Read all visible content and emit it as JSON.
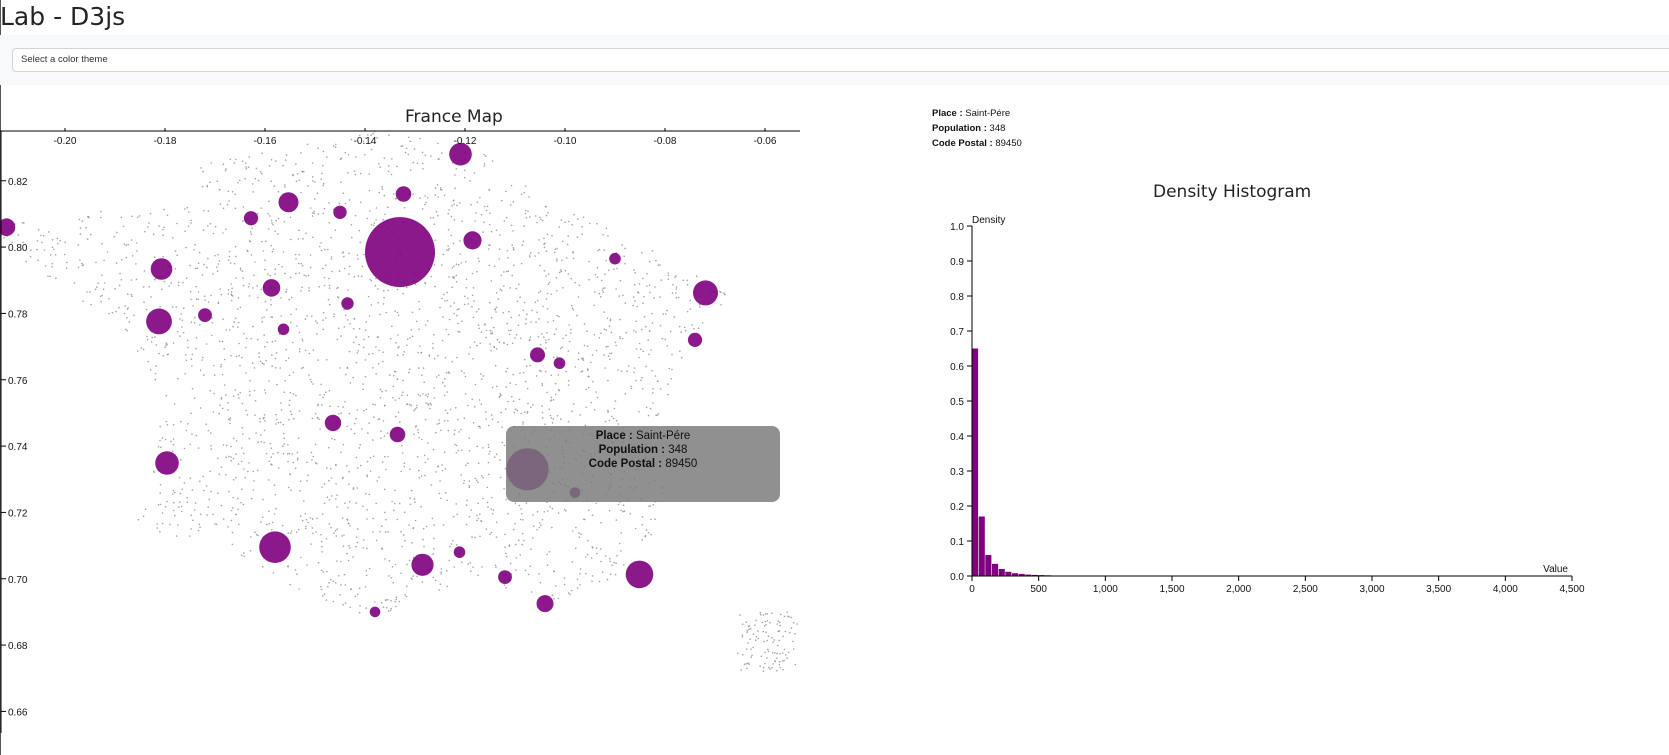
{
  "page": {
    "title": "Lab - D3js"
  },
  "theme_select": {
    "placeholder": "Select a color theme"
  },
  "colors": {
    "accent": "#800080",
    "dots": "#8a8a8a",
    "tooltip_bg": "#787878"
  },
  "info": {
    "place_label": "Place :",
    "place_value": "Saint-Pére",
    "population_label": "Population :",
    "population_value": "348",
    "postal_label": "Code Postal :",
    "postal_value": "89450"
  },
  "tooltip": {
    "place_label": "Place :",
    "place_value": "Saint-Pére",
    "population_label": "Population :",
    "population_value": "348",
    "postal_label": "Code Postal :",
    "postal_value": "89450"
  },
  "chart_data": [
    {
      "type": "scatter",
      "title": "France Map",
      "x_ticks": [
        "-0.20",
        "-0.18",
        "-0.16",
        "-0.14",
        "-0.12",
        "-0.10",
        "-0.08",
        "-0.06"
      ],
      "y_ticks": [
        "0.82",
        "0.80",
        "0.78",
        "0.76",
        "0.74",
        "0.72",
        "0.70",
        "0.68",
        "0.66"
      ],
      "xlim": [
        -0.213,
        -0.053
      ],
      "ylim": [
        0.655,
        0.835
      ],
      "x_axis_position": "top",
      "grid": false,
      "cities": [
        {
          "x": -0.133,
          "y": 0.7985,
          "population": 2200000
        },
        {
          "x": -0.1075,
          "y": 0.733,
          "population": 800000
        },
        {
          "x": -0.158,
          "y": 0.7095,
          "population": 450000
        },
        {
          "x": -0.0851,
          "y": 0.7013,
          "population": 340000
        },
        {
          "x": -0.0719,
          "y": 0.7862,
          "population": 280000
        },
        {
          "x": -0.1812,
          "y": 0.7776,
          "population": 300000
        },
        {
          "x": -0.1796,
          "y": 0.7349,
          "population": 250000
        },
        {
          "x": -0.1807,
          "y": 0.7934,
          "population": 210000
        },
        {
          "x": -0.1553,
          "y": 0.8135,
          "population": 180000
        },
        {
          "x": -0.1209,
          "y": 0.828,
          "population": 230000
        },
        {
          "x": -0.1185,
          "y": 0.802,
          "population": 150000
        },
        {
          "x": -0.1285,
          "y": 0.7042,
          "population": 220000
        },
        {
          "x": -0.104,
          "y": 0.6925,
          "population": 130000
        },
        {
          "x": -0.1587,
          "y": 0.7877,
          "population": 140000
        },
        {
          "x": -0.1464,
          "y": 0.747,
          "population": 120000
        },
        {
          "x": -0.1323,
          "y": 0.816,
          "population": 110000
        },
        {
          "x": -0.1335,
          "y": 0.7435,
          "population": 110000
        },
        {
          "x": -0.2117,
          "y": 0.806,
          "population": 140000
        },
        {
          "x": -0.1055,
          "y": 0.7675,
          "population": 100000
        },
        {
          "x": -0.074,
          "y": 0.772,
          "population": 90000
        },
        {
          "x": -0.112,
          "y": 0.7005,
          "population": 85000
        },
        {
          "x": -0.172,
          "y": 0.7795,
          "population": 85000
        },
        {
          "x": -0.1628,
          "y": 0.8087,
          "population": 90000
        },
        {
          "x": -0.145,
          "y": 0.8105,
          "population": 80000
        },
        {
          "x": -0.1435,
          "y": 0.783,
          "population": 70000
        },
        {
          "x": -0.1563,
          "y": 0.7752,
          "population": 60000
        },
        {
          "x": -0.09,
          "y": 0.7965,
          "population": 60000
        },
        {
          "x": -0.1211,
          "y": 0.708,
          "population": 60000
        },
        {
          "x": -0.1011,
          "y": 0.765,
          "population": 60000
        },
        {
          "x": -0.138,
          "y": 0.69,
          "population": 50000
        },
        {
          "x": -0.098,
          "y": 0.726,
          "population": 50000
        }
      ]
    },
    {
      "type": "bar",
      "title": "Density Histogram",
      "xlabel": "Value",
      "ylabel": "Density",
      "xlim": [
        0,
        4500
      ],
      "ylim": [
        0,
        1.0
      ],
      "x_ticks": [
        "0",
        "500",
        "1,000",
        "1,500",
        "2,000",
        "2,500",
        "3,000",
        "3,500",
        "4,000",
        "4,500"
      ],
      "y_ticks": [
        "0.0",
        "0.1",
        "0.2",
        "0.3",
        "0.4",
        "0.5",
        "0.6",
        "0.7",
        "0.8",
        "0.9",
        "1.0"
      ],
      "bin_width": 50,
      "values": [
        0.65,
        0.17,
        0.06,
        0.035,
        0.02,
        0.012,
        0.008,
        0.006,
        0.004,
        0.003,
        0.0025,
        0.002,
        0.0015,
        0.0012,
        0.001,
        0.0009,
        0.0008,
        0.0007,
        0.0006,
        0.0005,
        0.0004,
        0.0003,
        0.0003,
        0.0002,
        0.0002,
        0.0002,
        0.0001,
        0.0001,
        0.0001,
        0.0001
      ]
    }
  ]
}
